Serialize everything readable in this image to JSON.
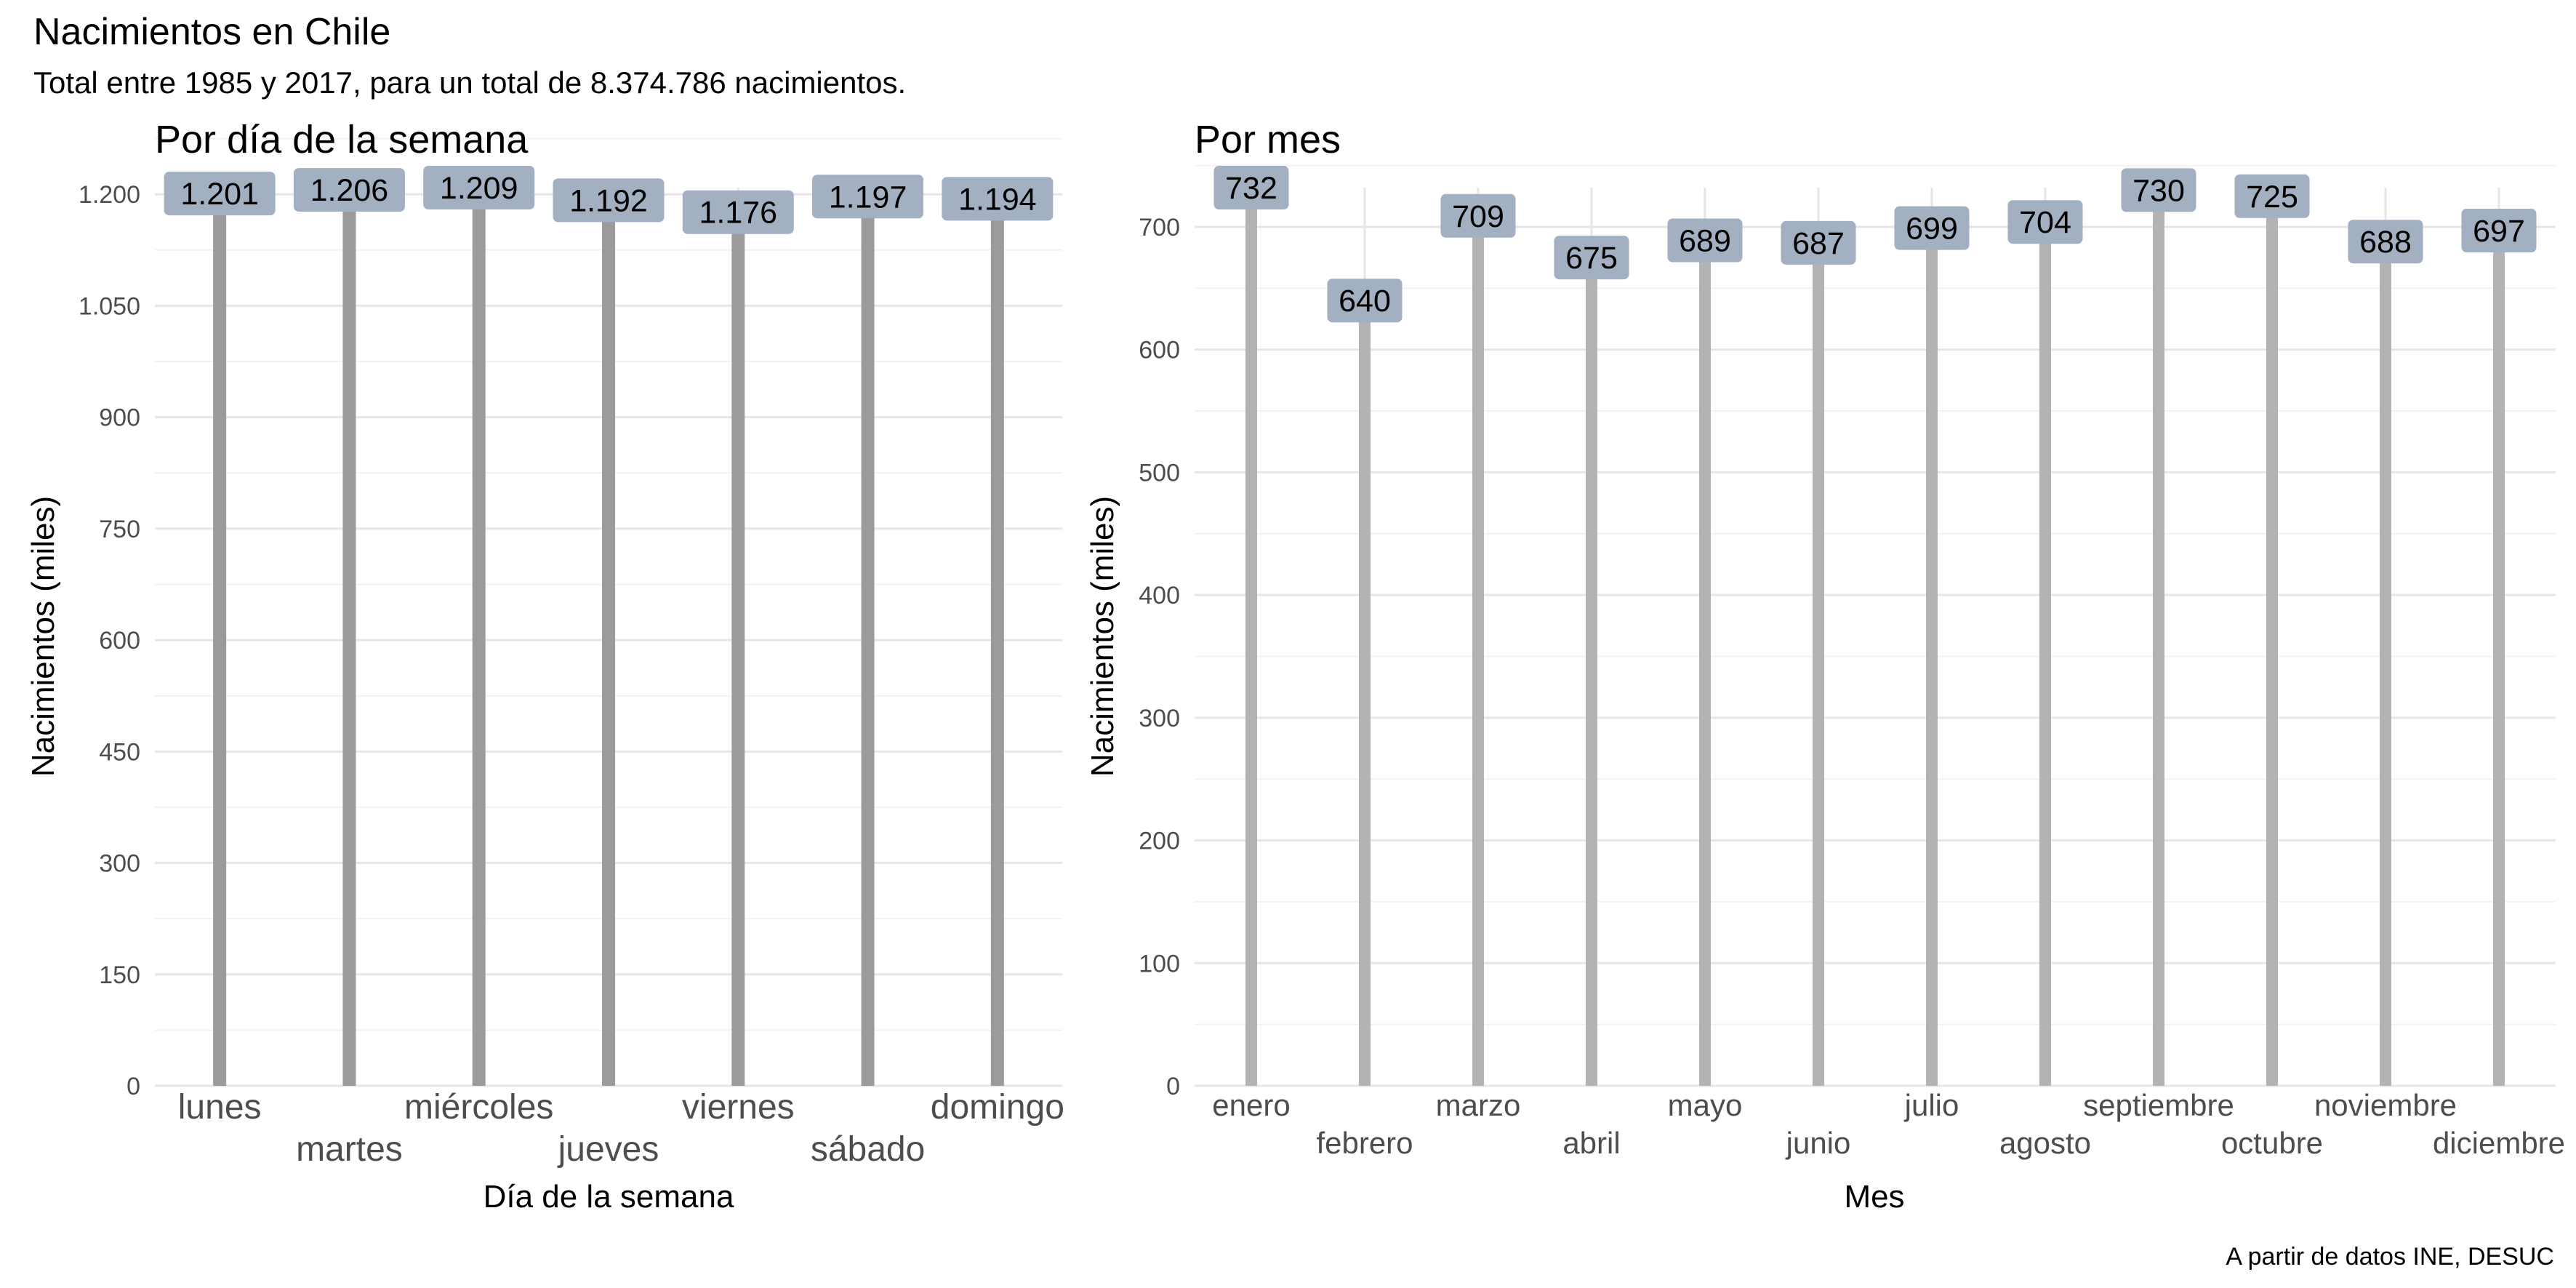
{
  "title": "Nacimientos en Chile",
  "subtitle": "Total entre 1985 y 2017, para un total de 8.374.786 nacimientos.",
  "caption": "A partir de datos INE, DESUC",
  "colors": {
    "stem": "#9b9b9b",
    "stem_month": "#b3b3b3",
    "label_fill": "#a3b0c2",
    "grid_major": "#e6e6e6",
    "grid_minor": "#f2f2f2"
  },
  "chart_data": [
    {
      "type": "bar",
      "title": "Por día de la semana",
      "xlabel": "Día de la semana",
      "ylabel": "Nacimientos (miles)",
      "categories": [
        "lunes",
        "martes",
        "miércoles",
        "jueves",
        "viernes",
        "sábado",
        "domingo"
      ],
      "values": [
        1201,
        1206,
        1209,
        1192,
        1176,
        1197,
        1194
      ],
      "value_labels": [
        "1.201",
        "1.206",
        "1.209",
        "1.192",
        "1.176",
        "1.197",
        "1.194"
      ],
      "ylim": [
        0,
        1209
      ],
      "yticks": [
        0,
        150,
        300,
        450,
        600,
        750,
        900,
        1050,
        1200
      ],
      "ytick_labels": [
        "0",
        "150",
        "300",
        "450",
        "600",
        "750",
        "900",
        "1.050",
        "1.200"
      ],
      "grid": true
    },
    {
      "type": "bar",
      "title": "Por mes",
      "xlabel": "Mes",
      "ylabel": "Nacimientos (miles)",
      "categories": [
        "enero",
        "febrero",
        "marzo",
        "abril",
        "mayo",
        "junio",
        "julio",
        "agosto",
        "septiembre",
        "octubre",
        "noviembre",
        "diciembre"
      ],
      "values": [
        732,
        640,
        709,
        675,
        689,
        687,
        699,
        704,
        730,
        725,
        688,
        697
      ],
      "value_labels": [
        "732",
        "640",
        "709",
        "675",
        "689",
        "687",
        "699",
        "704",
        "730",
        "725",
        "688",
        "697"
      ],
      "ylim": [
        0,
        732
      ],
      "yticks": [
        0,
        100,
        200,
        300,
        400,
        500,
        600,
        700
      ],
      "ytick_labels": [
        "0",
        "100",
        "200",
        "300",
        "400",
        "500",
        "600",
        "700"
      ],
      "grid": true
    }
  ]
}
